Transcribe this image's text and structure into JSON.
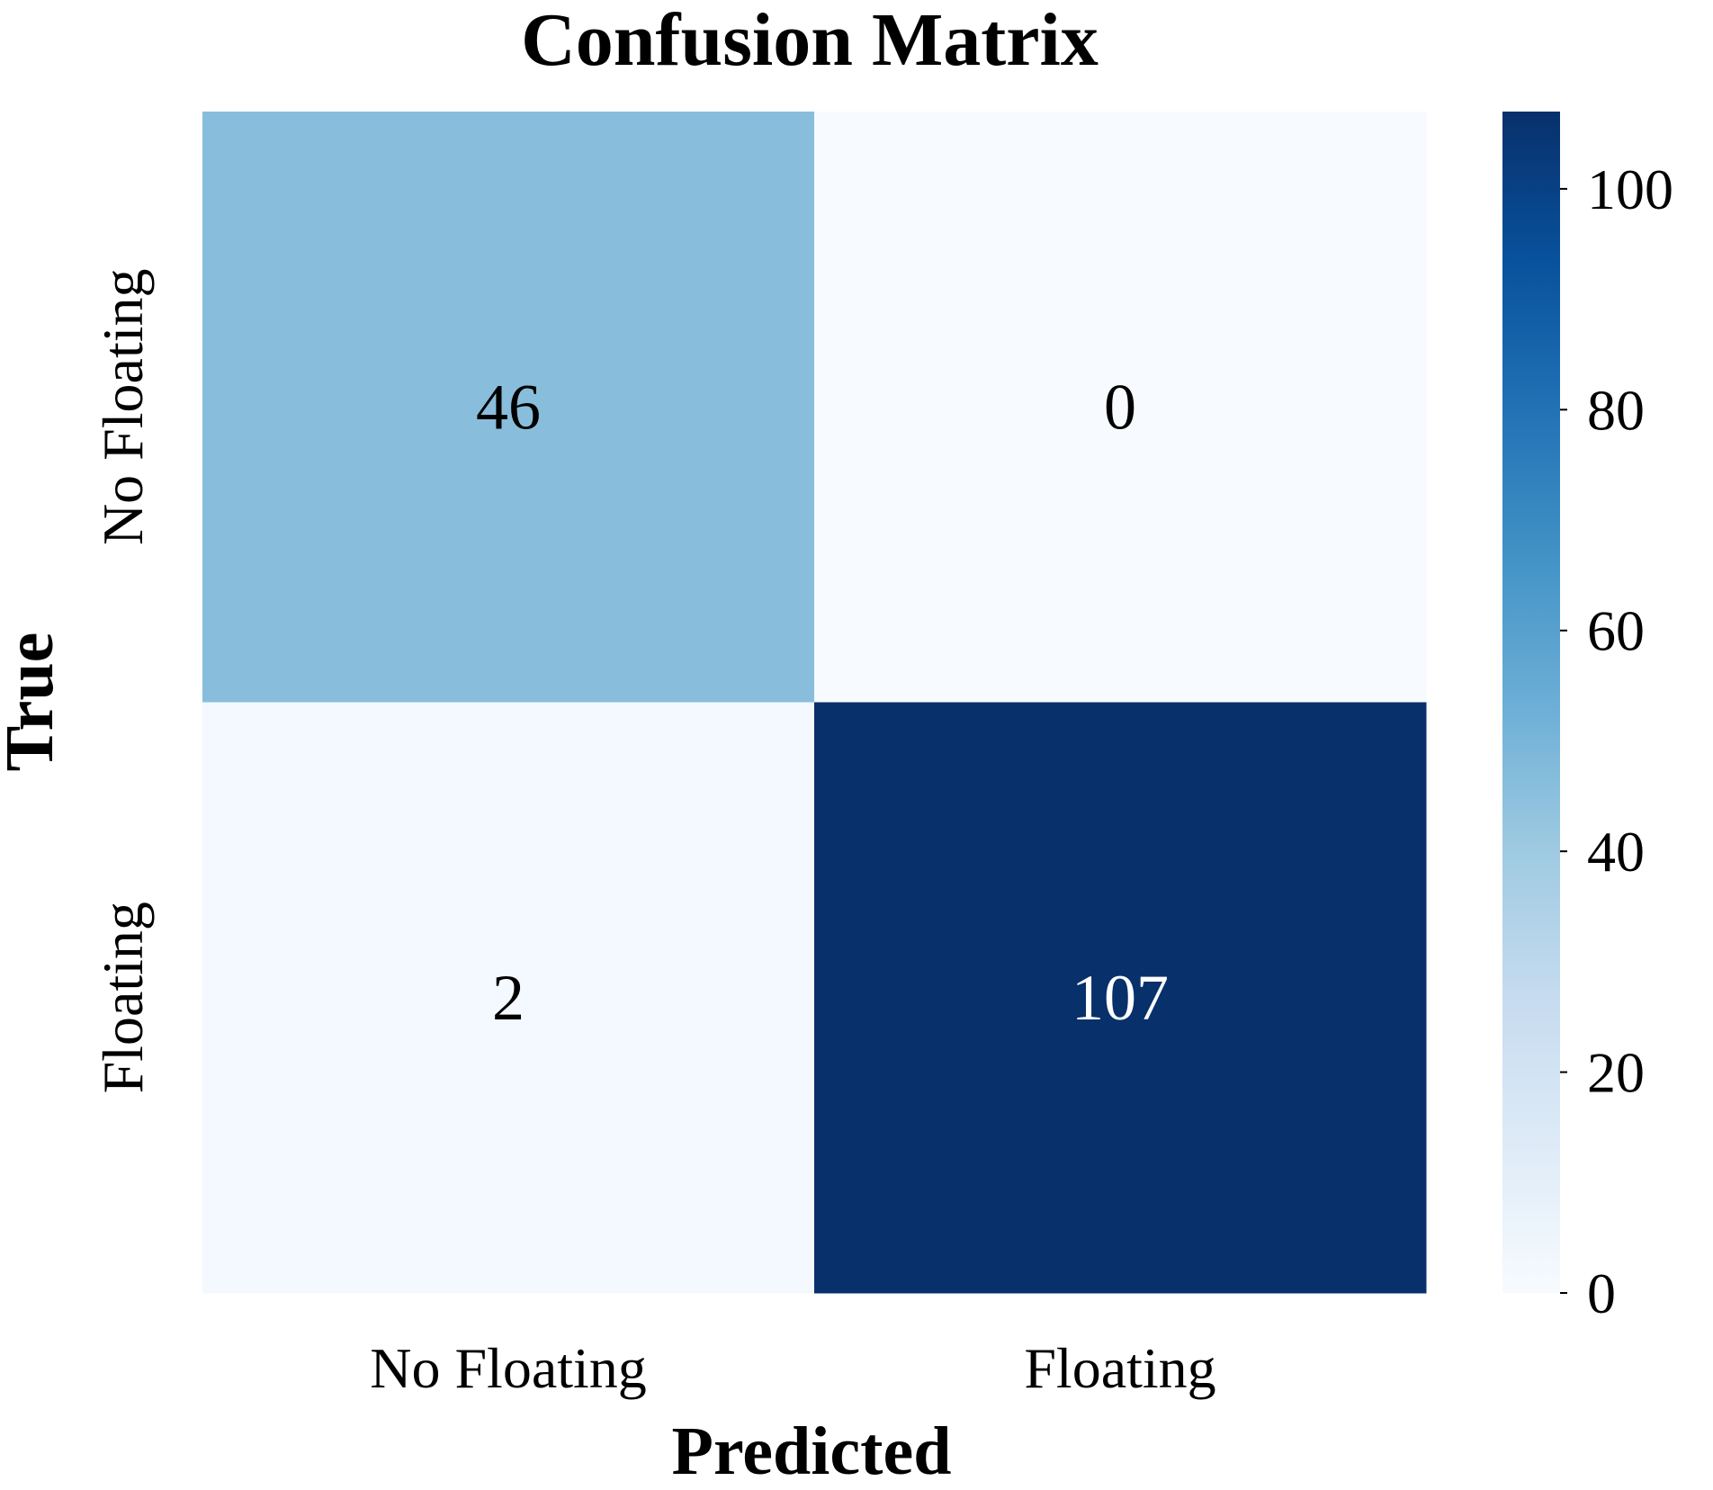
{
  "chart_data": {
    "type": "heatmap",
    "title": "Confusion Matrix",
    "xlabel": "Predicted",
    "ylabel": "True",
    "x_categories": [
      "No Floating",
      "Floating"
    ],
    "y_categories": [
      "No Floating",
      "Floating"
    ],
    "values": [
      [
        46,
        0
      ],
      [
        2,
        107
      ]
    ],
    "colormap": "Blues",
    "colorbar": {
      "min": 0,
      "max": 107,
      "ticks": [
        0,
        20,
        40,
        60,
        80,
        100
      ]
    }
  },
  "colors": {
    "cmap_stops": [
      "#f7fbff",
      "#deebf7",
      "#c6dbef",
      "#9ecae1",
      "#6baed6",
      "#4292c6",
      "#2171b5",
      "#08519c",
      "#08306b"
    ],
    "text_dark": "#000000",
    "text_light": "#ffffff"
  }
}
